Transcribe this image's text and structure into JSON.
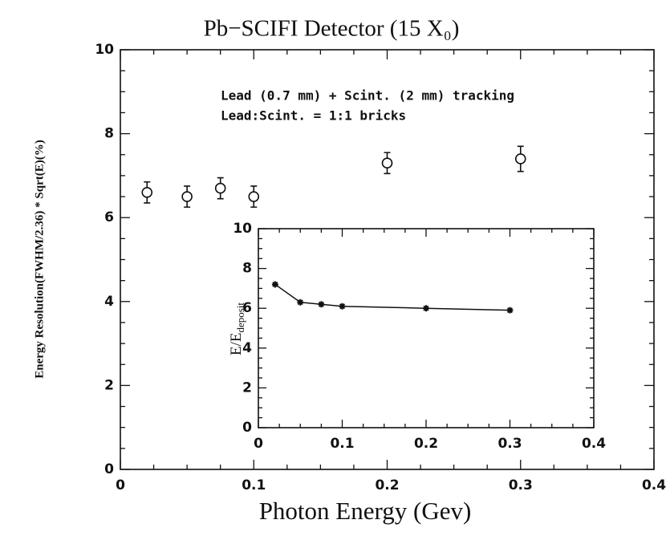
{
  "chart_data": [
    {
      "type": "scatter",
      "title": "Pb−SCIFI Detector (15 X₀)",
      "xlabel": "Photon Energy (Gev)",
      "ylabel": "Energy Resolution(FWHM/2.36) * Sqrt(E)(%)",
      "annotations": [
        "Lead (0.7 mm) + Scint. (2 mm) tracking",
        "Lead:Scint. = 1:1   bricks"
      ],
      "x": [
        0.02,
        0.05,
        0.075,
        0.1,
        0.2,
        0.3
      ],
      "values": [
        6.6,
        6.5,
        6.7,
        6.5,
        7.3,
        7.4
      ],
      "errors": [
        0.25,
        0.25,
        0.25,
        0.25,
        0.25,
        0.3
      ],
      "xlim": [
        0,
        0.4
      ],
      "ylim": [
        0,
        10
      ],
      "xticks": [
        0,
        0.1,
        0.2,
        0.3,
        0.4
      ],
      "yticks": [
        0,
        2,
        4,
        6,
        8,
        10
      ],
      "color": "#111111"
    },
    {
      "type": "line",
      "ylabel": {
        "main": "E/E",
        "sub": "deposit"
      },
      "x": [
        0.02,
        0.05,
        0.075,
        0.1,
        0.2,
        0.3
      ],
      "values": [
        7.2,
        6.3,
        6.2,
        6.1,
        6.0,
        5.9
      ],
      "xlim": [
        0,
        0.4
      ],
      "ylim": [
        0,
        10
      ],
      "xticks": [
        0,
        0.1,
        0.2,
        0.3,
        0.4
      ],
      "yticks": [
        0,
        2,
        4,
        6,
        8,
        10
      ],
      "color": "#111111"
    }
  ]
}
